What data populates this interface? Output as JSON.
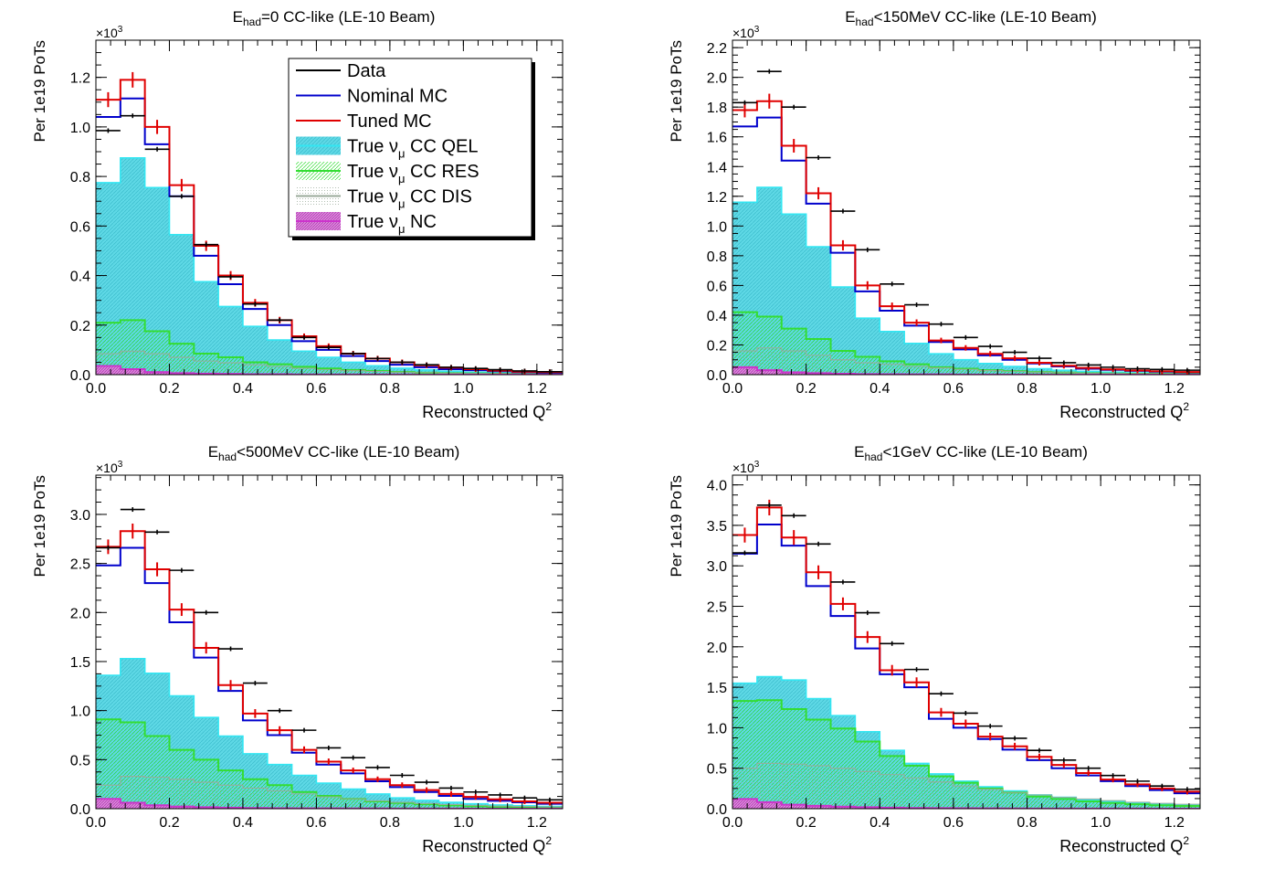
{
  "figure": {
    "ylabel": "Per 1e19 PoTs",
    "xlabel_main": "Reconstructed Q",
    "xlabel_sup": "2",
    "scale_base": "×10",
    "scale_exp": "3",
    "legend": {
      "entries": [
        {
          "key": "data",
          "label": "Data",
          "sub": "",
          "suffix": ""
        },
        {
          "key": "nominal",
          "label": "Nominal MC",
          "sub": "",
          "suffix": ""
        },
        {
          "key": "tuned",
          "label": "Tuned MC",
          "sub": "",
          "suffix": ""
        },
        {
          "key": "qel",
          "label": "True ν",
          "sub": "μ",
          "suffix": " CC QEL"
        },
        {
          "key": "res",
          "label": "True ν",
          "sub": "μ",
          "suffix": " CC RES"
        },
        {
          "key": "dis",
          "label": "True ν",
          "sub": "μ",
          "suffix": " CC DIS"
        },
        {
          "key": "nc",
          "label": "True ν",
          "sub": "μ",
          "suffix": " NC"
        }
      ]
    },
    "colors": {
      "data": "#000000",
      "nominal": "#0000cc",
      "tuned": "#e00000",
      "qel_fill": "#5fd9e6",
      "qel_line": "#33e6f2",
      "res_line": "#33dd33",
      "dis_line": "#99aa99",
      "nc_line": "#cc33cc",
      "nc_fill": "#dd88dd"
    }
  },
  "chart_data": [
    {
      "type": "histogram",
      "title_pre": "E",
      "title_sub": "had",
      "title_post": "=0 CC-like (LE-10 Beam)",
      "xlim": [
        0,
        1.27
      ],
      "ylim": [
        0,
        1.35
      ],
      "yticks": [
        0.0,
        0.2,
        0.4,
        0.6,
        0.8,
        1.0,
        1.2
      ],
      "xticks": [
        0.0,
        0.2,
        0.4,
        0.6,
        0.8,
        1.0,
        1.2
      ],
      "bin_edges": [
        0,
        0.0667,
        0.1333,
        0.2,
        0.2667,
        0.3333,
        0.4,
        0.4667,
        0.5333,
        0.6,
        0.6667,
        0.7333,
        0.8,
        0.8667,
        0.9333,
        1.0,
        1.0667,
        1.1333,
        1.2,
        1.27
      ],
      "series": {
        "data": [
          0.985,
          1.045,
          0.91,
          0.72,
          0.525,
          0.395,
          0.285,
          0.22,
          0.15,
          0.11,
          0.085,
          0.065,
          0.05,
          0.04,
          0.03,
          0.025,
          0.02,
          0.015,
          0.012
        ],
        "nominal": [
          1.04,
          1.115,
          0.93,
          0.72,
          0.48,
          0.365,
          0.265,
          0.2,
          0.135,
          0.1,
          0.075,
          0.055,
          0.04,
          0.03,
          0.022,
          0.018,
          0.014,
          0.01,
          0.008
        ],
        "tuned": [
          1.11,
          1.19,
          1.0,
          0.765,
          0.52,
          0.4,
          0.29,
          0.22,
          0.155,
          0.115,
          0.085,
          0.065,
          0.05,
          0.038,
          0.028,
          0.022,
          0.016,
          0.012,
          0.01
        ],
        "qel": [
          0.775,
          0.875,
          0.755,
          0.565,
          0.375,
          0.275,
          0.195,
          0.14,
          0.095,
          0.07,
          0.05,
          0.036,
          0.026,
          0.019,
          0.014,
          0.01,
          0.008,
          0.006,
          0.005
        ],
        "res": [
          0.21,
          0.22,
          0.175,
          0.125,
          0.085,
          0.07,
          0.05,
          0.042,
          0.032,
          0.025,
          0.019,
          0.015,
          0.011,
          0.008,
          0.006,
          0.005,
          0.004,
          0.003,
          0.002
        ],
        "dis": [
          0.085,
          0.095,
          0.085,
          0.07,
          0.055,
          0.048,
          0.04,
          0.033,
          0.026,
          0.02,
          0.016,
          0.013,
          0.01,
          0.008,
          0.006,
          0.005,
          0.004,
          0.003,
          0.002
        ],
        "nc": [
          0.035,
          0.022,
          0.01,
          0.006,
          0.004,
          0.003,
          0.002,
          0.002,
          0.001,
          0.001,
          0.001,
          0.001,
          0.001,
          0.0,
          0.0,
          0.0,
          0.0,
          0.0,
          0.0
        ]
      }
    },
    {
      "type": "histogram",
      "title_pre": "E",
      "title_sub": "had",
      "title_post": "<150MeV CC-like (LE-10 Beam)",
      "xlim": [
        0,
        1.27
      ],
      "ylim": [
        0,
        2.25
      ],
      "yticks": [
        0.0,
        0.2,
        0.4,
        0.6,
        0.8,
        1.0,
        1.2,
        1.4,
        1.6,
        1.8,
        2.0,
        2.2
      ],
      "xticks": [
        0.0,
        0.2,
        0.4,
        0.6,
        0.8,
        1.0,
        1.2
      ],
      "bin_edges": [
        0,
        0.0667,
        0.1333,
        0.2,
        0.2667,
        0.3333,
        0.4,
        0.4667,
        0.5333,
        0.6,
        0.6667,
        0.7333,
        0.8,
        0.8667,
        0.9333,
        1.0,
        1.0667,
        1.1333,
        1.2,
        1.27
      ],
      "series": {
        "data": [
          1.83,
          2.04,
          1.8,
          1.46,
          1.1,
          0.84,
          0.61,
          0.47,
          0.34,
          0.25,
          0.19,
          0.15,
          0.11,
          0.08,
          0.065,
          0.05,
          0.04,
          0.035,
          0.03
        ],
        "nominal": [
          1.67,
          1.73,
          1.44,
          1.15,
          0.82,
          0.56,
          0.43,
          0.33,
          0.22,
          0.17,
          0.13,
          0.1,
          0.075,
          0.055,
          0.04,
          0.032,
          0.025,
          0.02,
          0.016
        ],
        "tuned": [
          1.78,
          1.84,
          1.54,
          1.22,
          0.87,
          0.6,
          0.46,
          0.35,
          0.23,
          0.18,
          0.14,
          0.11,
          0.08,
          0.06,
          0.045,
          0.035,
          0.028,
          0.022,
          0.018
        ],
        "qel": [
          1.16,
          1.26,
          1.08,
          0.86,
          0.59,
          0.38,
          0.29,
          0.21,
          0.14,
          0.1,
          0.075,
          0.055,
          0.04,
          0.03,
          0.022,
          0.017,
          0.013,
          0.01,
          0.008
        ],
        "res": [
          0.42,
          0.39,
          0.31,
          0.24,
          0.16,
          0.12,
          0.09,
          0.07,
          0.05,
          0.04,
          0.03,
          0.024,
          0.018,
          0.014,
          0.01,
          0.008,
          0.006,
          0.005,
          0.004
        ],
        "dis": [
          0.16,
          0.18,
          0.16,
          0.13,
          0.1,
          0.08,
          0.07,
          0.055,
          0.045,
          0.035,
          0.028,
          0.022,
          0.017,
          0.013,
          0.01,
          0.008,
          0.006,
          0.005,
          0.004
        ],
        "nc": [
          0.05,
          0.03,
          0.015,
          0.01,
          0.006,
          0.004,
          0.003,
          0.002,
          0.002,
          0.001,
          0.001,
          0.001,
          0.001,
          0.0,
          0.0,
          0.0,
          0.0,
          0.0,
          0.0
        ]
      }
    },
    {
      "type": "histogram",
      "title_pre": "E",
      "title_sub": "had",
      "title_post": "<500MeV CC-like (LE-10 Beam)",
      "xlim": [
        0,
        1.27
      ],
      "ylim": [
        0,
        3.4
      ],
      "yticks": [
        0.0,
        0.5,
        1.0,
        1.5,
        2.0,
        2.5,
        3.0
      ],
      "xticks": [
        0.0,
        0.2,
        0.4,
        0.6,
        0.8,
        1.0,
        1.2
      ],
      "bin_edges": [
        0,
        0.0667,
        0.1333,
        0.2,
        0.2667,
        0.3333,
        0.4,
        0.4667,
        0.5333,
        0.6,
        0.6667,
        0.7333,
        0.8,
        0.8667,
        0.9333,
        1.0,
        1.0667,
        1.1333,
        1.2,
        1.27
      ],
      "series": {
        "data": [
          2.66,
          3.05,
          2.82,
          2.43,
          2.0,
          1.63,
          1.28,
          1.0,
          0.8,
          0.62,
          0.52,
          0.42,
          0.34,
          0.27,
          0.21,
          0.17,
          0.14,
          0.11,
          0.09
        ],
        "nominal": [
          2.48,
          2.66,
          2.3,
          1.9,
          1.54,
          1.2,
          0.9,
          0.75,
          0.57,
          0.45,
          0.36,
          0.28,
          0.22,
          0.17,
          0.13,
          0.1,
          0.08,
          0.065,
          0.05
        ],
        "tuned": [
          2.67,
          2.83,
          2.44,
          2.03,
          1.64,
          1.26,
          0.97,
          0.8,
          0.6,
          0.48,
          0.39,
          0.3,
          0.24,
          0.19,
          0.15,
          0.12,
          0.095,
          0.075,
          0.06
        ],
        "qel": [
          1.36,
          1.53,
          1.38,
          1.15,
          0.93,
          0.74,
          0.56,
          0.45,
          0.34,
          0.26,
          0.2,
          0.15,
          0.11,
          0.085,
          0.065,
          0.05,
          0.038,
          0.03,
          0.023
        ],
        "res": [
          0.91,
          0.88,
          0.74,
          0.6,
          0.5,
          0.39,
          0.3,
          0.24,
          0.17,
          0.13,
          0.1,
          0.075,
          0.058,
          0.045,
          0.034,
          0.026,
          0.02,
          0.015,
          0.012
        ],
        "dis": [
          0.24,
          0.33,
          0.32,
          0.3,
          0.27,
          0.24,
          0.21,
          0.18,
          0.15,
          0.12,
          0.1,
          0.08,
          0.065,
          0.052,
          0.042,
          0.034,
          0.027,
          0.022,
          0.018
        ],
        "nc": [
          0.1,
          0.06,
          0.035,
          0.022,
          0.015,
          0.01,
          0.007,
          0.005,
          0.004,
          0.003,
          0.002,
          0.002,
          0.001,
          0.001,
          0.001,
          0.0,
          0.0,
          0.0,
          0.0
        ]
      }
    },
    {
      "type": "histogram",
      "title_pre": "E",
      "title_sub": "had",
      "title_post": "<1GeV CC-like (LE-10 Beam)",
      "xlim": [
        0,
        1.27
      ],
      "ylim": [
        0,
        4.12
      ],
      "yticks": [
        0.0,
        0.5,
        1.0,
        1.5,
        2.0,
        2.5,
        3.0,
        3.5,
        4.0
      ],
      "xticks": [
        0.0,
        0.2,
        0.4,
        0.6,
        0.8,
        1.0,
        1.2
      ],
      "bin_edges": [
        0,
        0.0667,
        0.1333,
        0.2,
        0.2667,
        0.3333,
        0.4,
        0.4667,
        0.5333,
        0.6,
        0.6667,
        0.7333,
        0.8,
        0.8667,
        0.9333,
        1.0,
        1.0667,
        1.1333,
        1.2,
        1.27
      ],
      "series": {
        "data": [
          3.16,
          3.75,
          3.62,
          3.27,
          2.8,
          2.42,
          2.04,
          1.72,
          1.42,
          1.18,
          1.02,
          0.87,
          0.72,
          0.6,
          0.5,
          0.41,
          0.34,
          0.28,
          0.24
        ],
        "nominal": [
          3.15,
          3.51,
          3.25,
          2.75,
          2.38,
          1.98,
          1.66,
          1.5,
          1.11,
          1.0,
          0.86,
          0.73,
          0.6,
          0.5,
          0.41,
          0.34,
          0.28,
          0.23,
          0.19
        ],
        "tuned": [
          3.38,
          3.72,
          3.35,
          2.92,
          2.53,
          2.12,
          1.71,
          1.56,
          1.19,
          1.05,
          0.89,
          0.77,
          0.64,
          0.54,
          0.44,
          0.36,
          0.3,
          0.25,
          0.21
        ],
        "qel": [
          1.55,
          1.63,
          1.59,
          1.36,
          1.15,
          0.95,
          0.72,
          0.56,
          0.43,
          0.34,
          0.27,
          0.22,
          0.17,
          0.14,
          0.11,
          0.09,
          0.07,
          0.055,
          0.045
        ],
        "res": [
          1.33,
          1.34,
          1.23,
          1.1,
          0.99,
          0.83,
          0.65,
          0.53,
          0.4,
          0.32,
          0.25,
          0.2,
          0.15,
          0.12,
          0.09,
          0.07,
          0.055,
          0.043,
          0.034
        ],
        "dis": [
          0.5,
          0.56,
          0.55,
          0.53,
          0.5,
          0.46,
          0.42,
          0.38,
          0.33,
          0.28,
          0.24,
          0.2,
          0.17,
          0.14,
          0.12,
          0.1,
          0.08,
          0.066,
          0.055
        ],
        "nc": [
          0.12,
          0.08,
          0.05,
          0.035,
          0.025,
          0.018,
          0.013,
          0.009,
          0.007,
          0.005,
          0.004,
          0.003,
          0.002,
          0.002,
          0.001,
          0.001,
          0.001,
          0.0,
          0.0
        ]
      }
    }
  ]
}
